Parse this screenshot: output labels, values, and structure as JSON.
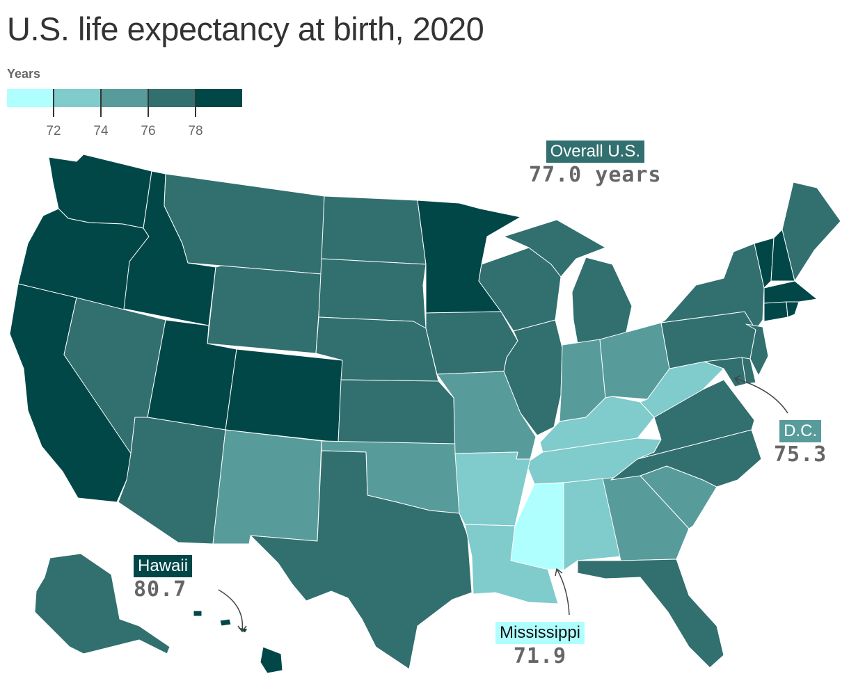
{
  "title": "U.S. life expectancy at birth, 2020",
  "legend": {
    "label": "Years",
    "colors": [
      "#afffff",
      "#80cbcb",
      "#589b9b",
      "#326f6f",
      "#014748"
    ],
    "thresholds": [
      "72",
      "74",
      "76",
      "78"
    ]
  },
  "callouts": {
    "overall": {
      "name": "Overall U.S.",
      "value": "77.0 years"
    },
    "dc": {
      "name": "D.C.",
      "value": "75.3"
    },
    "hawaii": {
      "name": "Hawaii",
      "value": "80.7"
    },
    "mississippi": {
      "name": "Mississippi",
      "value": "71.9"
    }
  },
  "states": {
    "WA": "c5",
    "OR": "c5",
    "CA": "c5",
    "ID": "c5",
    "UT": "c5",
    "CO": "c5",
    "MN": "c5",
    "HI": "c5",
    "VT": "c5",
    "NH": "c5",
    "MA": "c5",
    "CT": "c5",
    "RI": "c5",
    "MT": "c4",
    "WY": "c4",
    "ND": "c4",
    "SD": "c4",
    "NE": "c4",
    "KS": "c4",
    "NV": "c4",
    "AZ": "c4",
    "TX": "c4",
    "IA": "c4",
    "WI": "c4",
    "MI": "c4",
    "IL": "c4",
    "ME": "c4",
    "NY": "c4",
    "PA": "c4",
    "NJ": "c4",
    "DE": "c4",
    "MD": "c4",
    "VA": "c4",
    "NC": "c4",
    "FL": "c4",
    "AK": "c4",
    "NM": "c3",
    "OK": "c3",
    "MO": "c3",
    "IN": "c3",
    "OH": "c3",
    "SC": "c3",
    "GA": "c3",
    "AR": "c2",
    "LA": "c2",
    "AL": "c2",
    "TN": "c2",
    "KY": "c2",
    "WV": "c2",
    "MS": "c1"
  }
}
